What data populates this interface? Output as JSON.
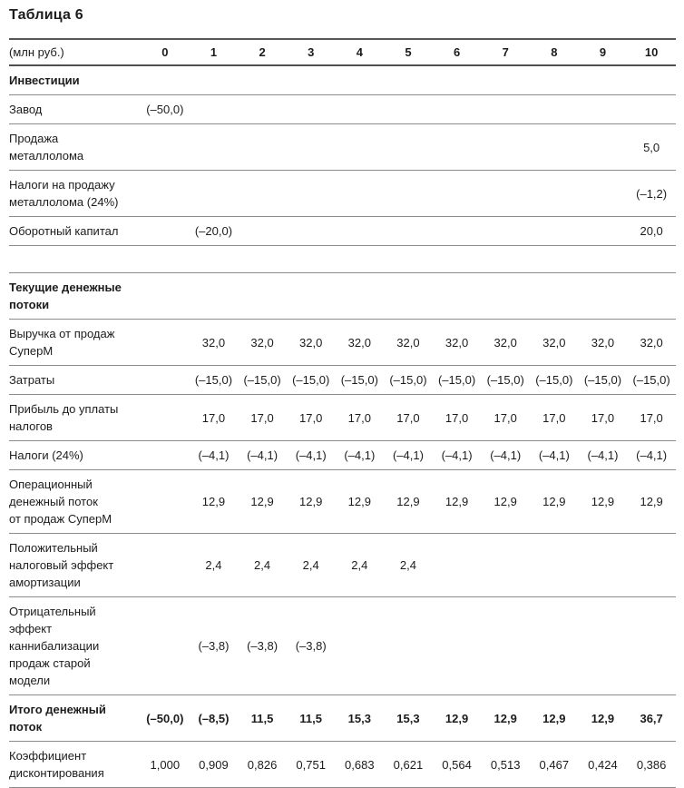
{
  "title": "Таблица 6",
  "table": {
    "unit_label": "(млн руб.)",
    "periods": [
      "0",
      "1",
      "2",
      "3",
      "4",
      "5",
      "6",
      "7",
      "8",
      "9",
      "10"
    ],
    "rows": [
      {
        "type": "section",
        "label": "Инвестиции",
        "values": [
          "",
          "",
          "",
          "",
          "",
          "",
          "",
          "",
          "",
          "",
          ""
        ]
      },
      {
        "type": "data",
        "label": "Завод",
        "values": [
          "(–50,0)",
          "",
          "",
          "",
          "",
          "",
          "",
          "",
          "",
          "",
          ""
        ]
      },
      {
        "type": "data",
        "label": "Продажа\nметаллолома",
        "values": [
          "",
          "",
          "",
          "",
          "",
          "",
          "",
          "",
          "",
          "",
          "5,0"
        ]
      },
      {
        "type": "data",
        "label": "Налоги на продажу\nметаллолома (24%)",
        "values": [
          "",
          "",
          "",
          "",
          "",
          "",
          "",
          "",
          "",
          "",
          "(–1,2)"
        ]
      },
      {
        "type": "data",
        "label": "Оборотный капитал",
        "values": [
          "",
          "(–20,0)",
          "",
          "",
          "",
          "",
          "",
          "",
          "",
          "",
          "20,0"
        ]
      },
      {
        "type": "spacer",
        "label": "",
        "values": [
          "",
          "",
          "",
          "",
          "",
          "",
          "",
          "",
          "",
          "",
          ""
        ]
      },
      {
        "type": "section",
        "label": "Текущие денежные\nпотоки",
        "values": [
          "",
          "",
          "",
          "",
          "",
          "",
          "",
          "",
          "",
          "",
          ""
        ]
      },
      {
        "type": "data",
        "label": "Выручка от продаж\nСуперМ",
        "values": [
          "",
          "32,0",
          "32,0",
          "32,0",
          "32,0",
          "32,0",
          "32,0",
          "32,0",
          "32,0",
          "32,0",
          "32,0"
        ]
      },
      {
        "type": "data",
        "label": "Затраты",
        "values": [
          "",
          "(–15,0)",
          "(–15,0)",
          "(–15,0)",
          "(–15,0)",
          "(–15,0)",
          "(–15,0)",
          "(–15,0)",
          "(–15,0)",
          "(–15,0)",
          "(–15,0)"
        ]
      },
      {
        "type": "data",
        "label": "Прибыль до уплаты\nналогов",
        "values": [
          "",
          "17,0",
          "17,0",
          "17,0",
          "17,0",
          "17,0",
          "17,0",
          "17,0",
          "17,0",
          "17,0",
          "17,0"
        ]
      },
      {
        "type": "data",
        "label": "Налоги (24%)",
        "values": [
          "",
          "(–4,1)",
          "(–4,1)",
          "(–4,1)",
          "(–4,1)",
          "(–4,1)",
          "(–4,1)",
          "(–4,1)",
          "(–4,1)",
          "(–4,1)",
          "(–4,1)"
        ]
      },
      {
        "type": "data",
        "label": "Операционный\nденежный поток\nот продаж СуперМ",
        "values": [
          "",
          "12,9",
          "12,9",
          "12,9",
          "12,9",
          "12,9",
          "12,9",
          "12,9",
          "12,9",
          "12,9",
          "12,9"
        ]
      },
      {
        "type": "data",
        "label": "Положительный\nналоговый эффект\nамортизации",
        "values": [
          "",
          "2,4",
          "2,4",
          "2,4",
          "2,4",
          "2,4",
          "",
          "",
          "",
          "",
          ""
        ]
      },
      {
        "type": "data",
        "label": "Отрицательный\nэффект\nканнибализации\nпродаж старой\nмодели",
        "values": [
          "",
          "(–3,8)",
          "(–3,8)",
          "(–3,8)",
          "",
          "",
          "",
          "",
          "",
          "",
          ""
        ]
      },
      {
        "type": "total",
        "label": "Итого денежный\nпоток",
        "values": [
          "(–50,0)",
          "(–8,5)",
          "11,5",
          "11,5",
          "15,3",
          "15,3",
          "12,9",
          "12,9",
          "12,9",
          "12,9",
          "36,7"
        ]
      },
      {
        "type": "data",
        "label": "Коэффициент\nдисконтирования",
        "values": [
          "1,000",
          "0,909",
          "0,826",
          "0,751",
          "0,683",
          "0,621",
          "0,564",
          "0,513",
          "0,467",
          "0,424",
          "0,386"
        ]
      }
    ]
  },
  "colors": {
    "text": "#1c1c1c",
    "rule": "#8b8b8b",
    "rule_strong": "#4f4f4f",
    "background": "#ffffff"
  }
}
